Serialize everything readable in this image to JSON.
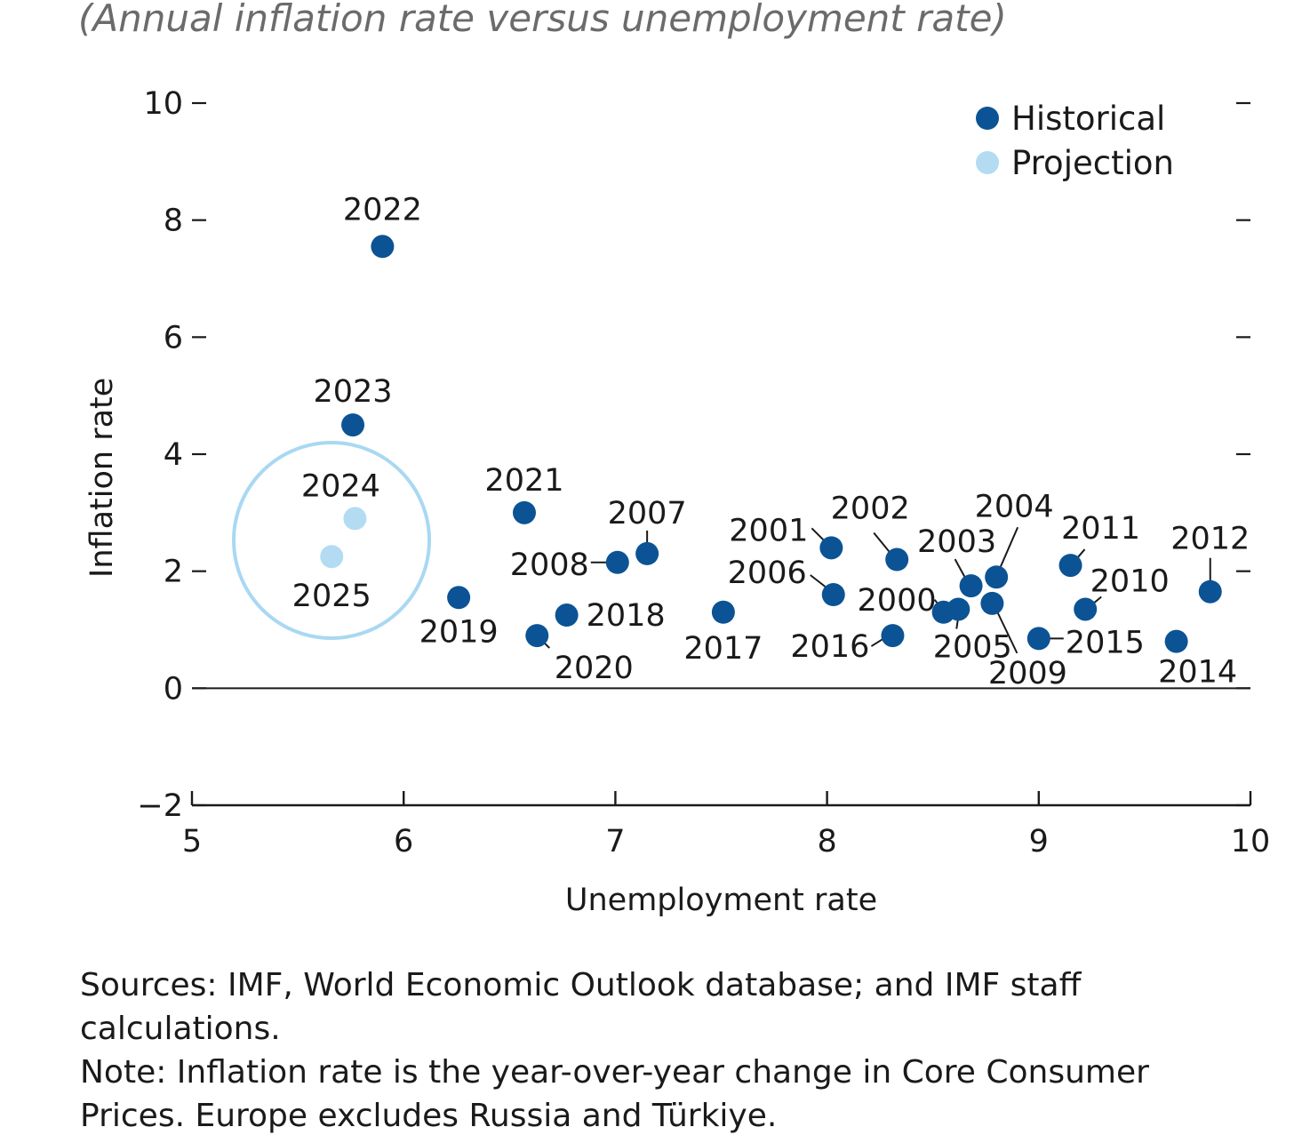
{
  "subtitle": "(Annual inflation rate versus unemployment rate)",
  "colors": {
    "historical": "#0b5394",
    "projection": "#b3dcf3",
    "circle": "#a9d8f2",
    "text": "#1a1a1a"
  },
  "chart_data": {
    "type": "scatter",
    "title": "",
    "subtitle": "(Annual inflation rate versus unemployment rate)",
    "xlabel": "Unemployment rate",
    "ylabel": "Inflation rate",
    "xlim": [
      5,
      10
    ],
    "ylim": [
      -2,
      10
    ],
    "xticks": [
      "5",
      "6",
      "7",
      "8",
      "9",
      "10"
    ],
    "yticks": [
      "−2",
      "0",
      "2",
      "4",
      "6",
      "8",
      "10"
    ],
    "grid": false,
    "legend_position": "top-right",
    "series": [
      {
        "name": "Historical",
        "points": [
          {
            "label": "2000",
            "x": 8.55,
            "y": 1.3
          },
          {
            "label": "2001",
            "x": 8.02,
            "y": 2.4
          },
          {
            "label": "2002",
            "x": 8.33,
            "y": 2.2
          },
          {
            "label": "2003",
            "x": 8.68,
            "y": 1.75
          },
          {
            "label": "2004",
            "x": 8.8,
            "y": 1.9
          },
          {
            "label": "2005",
            "x": 8.62,
            "y": 1.35
          },
          {
            "label": "2006",
            "x": 8.03,
            "y": 1.6
          },
          {
            "label": "2007",
            "x": 7.15,
            "y": 2.3
          },
          {
            "label": "2008",
            "x": 7.01,
            "y": 2.15
          },
          {
            "label": "2009",
            "x": 8.78,
            "y": 1.45
          },
          {
            "label": "2010",
            "x": 9.22,
            "y": 1.35
          },
          {
            "label": "2011",
            "x": 9.15,
            "y": 2.1
          },
          {
            "label": "2012",
            "x": 9.81,
            "y": 1.65
          },
          {
            "label": "2014",
            "x": 9.65,
            "y": 0.8
          },
          {
            "label": "2015",
            "x": 9.0,
            "y": 0.85
          },
          {
            "label": "2016",
            "x": 8.31,
            "y": 0.9
          },
          {
            "label": "2017",
            "x": 7.51,
            "y": 1.3
          },
          {
            "label": "2018",
            "x": 6.77,
            "y": 1.25
          },
          {
            "label": "2019",
            "x": 6.26,
            "y": 1.55
          },
          {
            "label": "2020",
            "x": 6.63,
            "y": 0.9
          },
          {
            "label": "2021",
            "x": 6.57,
            "y": 3.0
          },
          {
            "label": "2022",
            "x": 5.9,
            "y": 7.55
          },
          {
            "label": "2023",
            "x": 5.76,
            "y": 4.5
          }
        ]
      },
      {
        "name": "Projection",
        "points": [
          {
            "label": "2024",
            "x": 5.77,
            "y": 2.9
          },
          {
            "label": "2025",
            "x": 5.66,
            "y": 2.25
          }
        ]
      }
    ]
  },
  "notes": {
    "sources": "Sources: IMF, World Economic Outlook database; and IMF staff calculations.",
    "note": "Note: Inflation rate is the year-over-year change in Core Consumer Prices. Europe excludes Russia and Türkiye."
  }
}
